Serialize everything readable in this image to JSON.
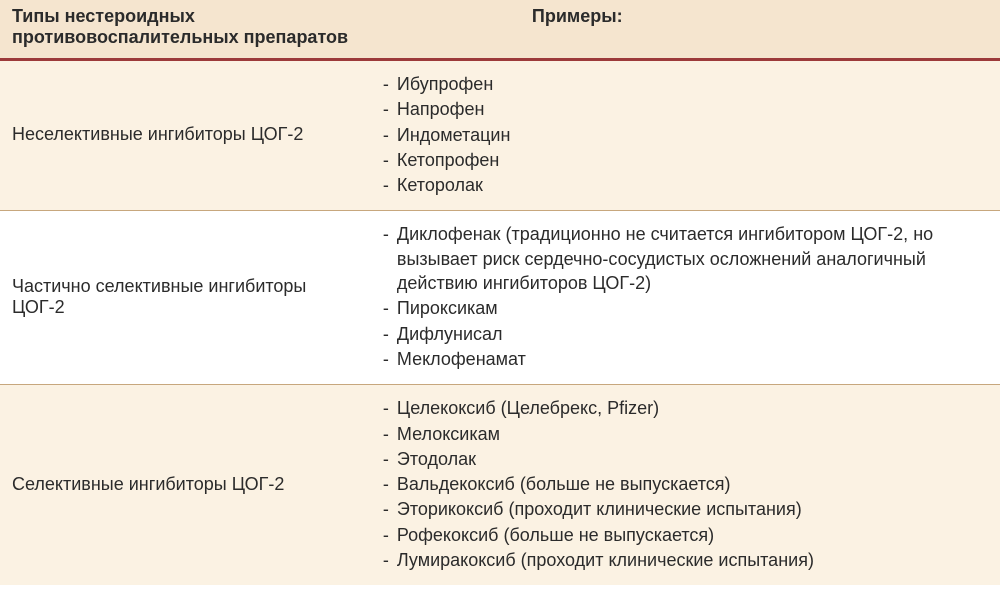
{
  "header": {
    "types_label": "Типы нестероидных противовоспалительных препаратов",
    "examples_label": "Примеры:"
  },
  "rows": [
    {
      "type_label": "Неселективные ингибиторы ЦОГ-2",
      "alt": true,
      "examples": [
        "Ибупрофен",
        "Напрофен",
        "Индометацин",
        "Кетопрофен",
        "Кеторолак"
      ]
    },
    {
      "type_label": "Частично селективные ингибиторы ЦОГ-2",
      "alt": false,
      "examples": [
        "Диклофенак (традиционно не считается ингибитором ЦОГ-2, но вызывает риск сердечно-сосудистых осложнений аналогичный действию ингибиторов ЦОГ-2)",
        "Пироксикам",
        "Дифлунисал",
        "Меклофенамат"
      ]
    },
    {
      "type_label": "Селективные ингибиторы ЦОГ-2",
      "alt": true,
      "examples": [
        "Целекоксиб (Целебрекс, Pfizer)",
        "Мелоксикам",
        "Этодолак",
        "Вальдекоксиб (больше не выпускается)",
        "Эторикоксиб (проходит клинические испытания)",
        "Рофекоксиб (больше не выпускается)",
        "Лумиракоксиб (проходит клинические испытания)"
      ]
    }
  ],
  "colors": {
    "header_bg": "#f5e5cf",
    "alt_row_bg": "#fbf2e3",
    "header_border": "#9c3a3a",
    "row_border": "#c7a77d",
    "text": "#2b2b2b"
  },
  "typography": {
    "font_family": "Arial",
    "body_fontsize_pt": 14,
    "header_weight": "bold"
  },
  "dash": "-"
}
